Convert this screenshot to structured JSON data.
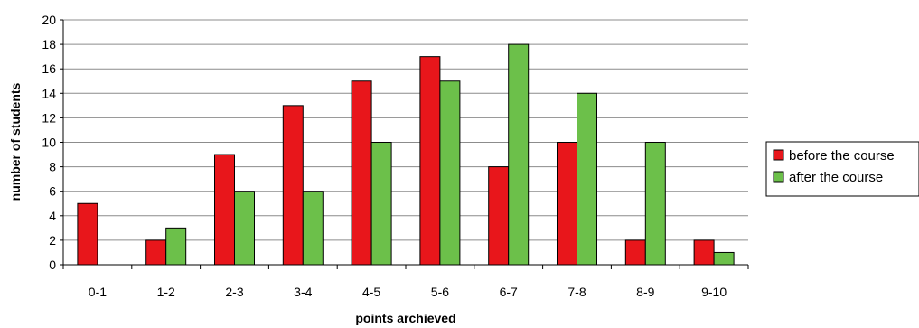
{
  "chart_data": {
    "type": "bar",
    "title": "",
    "xlabel": "points archieved",
    "ylabel": "number of students",
    "categories": [
      "0-1",
      "1-2",
      "2-3",
      "3-4",
      "4-5",
      "5-6",
      "6-7",
      "7-8",
      "8-9",
      "9-10"
    ],
    "series": [
      {
        "name": "before the course",
        "color": "#e8161b",
        "values": [
          5,
          2,
          9,
          13,
          15,
          17,
          8,
          10,
          2,
          2
        ]
      },
      {
        "name": "after the course",
        "color": "#6cc04a",
        "values": [
          0,
          3,
          6,
          6,
          10,
          15,
          18,
          14,
          10,
          1
        ]
      }
    ],
    "ylim": [
      0,
      20
    ],
    "yticks": [
      0,
      2,
      4,
      6,
      8,
      10,
      12,
      14,
      16,
      18,
      20
    ],
    "grid": true,
    "legend_position": "right"
  }
}
